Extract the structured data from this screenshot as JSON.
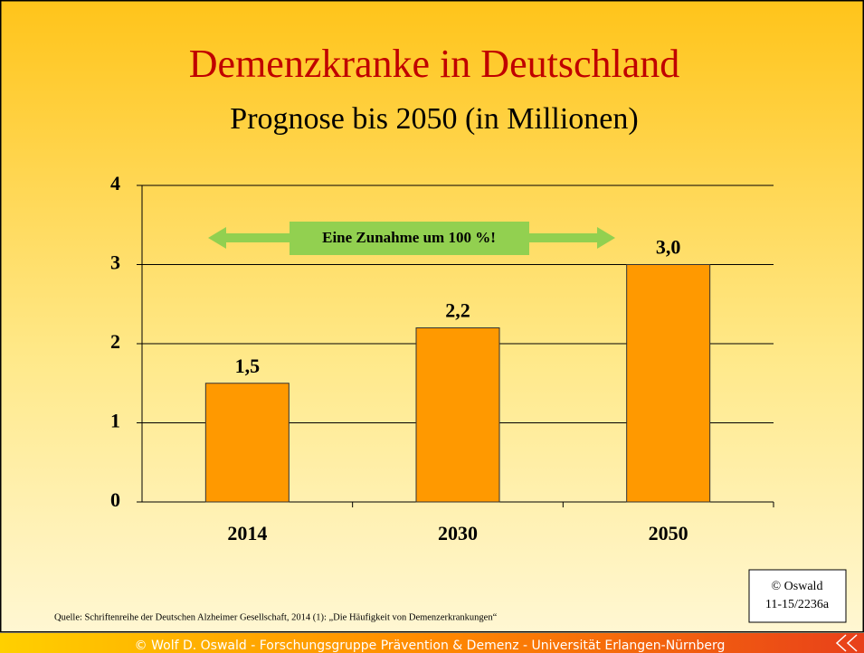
{
  "chart_data": {
    "type": "bar",
    "title": "Demenzkranke in Deutschland",
    "subtitle": "Prognose bis 2050 (in Millionen)",
    "annotation": "Eine Zunahme um 100 %!",
    "categories": [
      "2014",
      "2030",
      "2050"
    ],
    "values": [
      1.5,
      2.2,
      3.0
    ],
    "value_labels": [
      "1,5",
      "2,2",
      "3,0"
    ],
    "color": "#ff9900",
    "ylim": [
      0,
      4
    ],
    "yticks": [
      0,
      1,
      2,
      3,
      4
    ],
    "grid": true,
    "source": "Quelle: Schriftenreihe der Deutschen Alzheimer Gesellschaft, 2014 (1): „Die Häufigkeit von Demenzerkrankungen“",
    "copyright": [
      "© Oswald",
      "11-15/2236a"
    ],
    "footer": "© Wolf  D. Oswald - Forschungsgruppe Prävention & Demenz - Universität Erlangen-Nürnberg"
  }
}
